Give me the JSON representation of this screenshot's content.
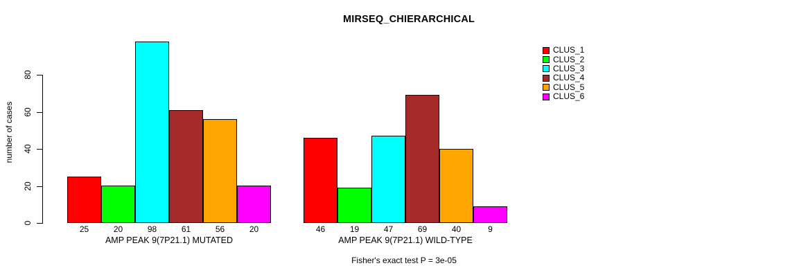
{
  "title": "MIRSEQ_CHIERARCHICAL",
  "y_axis": {
    "label": "number of cases",
    "tick_labels": [
      "0",
      "20",
      "40",
      "60",
      "80"
    ]
  },
  "legend": {
    "items": [
      {
        "label": "CLUS_1",
        "color": "#ff0000"
      },
      {
        "label": "CLUS_2",
        "color": "#00ff00"
      },
      {
        "label": "CLUS_3",
        "color": "#00ffff"
      },
      {
        "label": "CLUS_4",
        "color": "#a52a2a"
      },
      {
        "label": "CLUS_5",
        "color": "#ffa500"
      },
      {
        "label": "CLUS_6",
        "color": "#ff00ff"
      }
    ]
  },
  "footnote": "Fisher's exact test P = 3e-05",
  "chart_data": {
    "type": "bar",
    "title": "MIRSEQ_CHIERARCHICAL",
    "xlabel": "",
    "ylabel": "number of cases",
    "ylim": [
      0,
      100
    ],
    "yticks": [
      0,
      20,
      40,
      60,
      80
    ],
    "grid": false,
    "legend_position": "right",
    "bar_value_labels": true,
    "categories": [
      "AMP PEAK 9(7P21.1) MUTATED",
      "AMP PEAK 9(7P21.1) WILD-TYPE"
    ],
    "series": [
      {
        "name": "CLUS_1",
        "color": "#ff0000",
        "values": [
          25,
          46
        ]
      },
      {
        "name": "CLUS_2",
        "color": "#00ff00",
        "values": [
          20,
          19
        ]
      },
      {
        "name": "CLUS_3",
        "color": "#00ffff",
        "values": [
          98,
          47
        ]
      },
      {
        "name": "CLUS_4",
        "color": "#a52a2a",
        "values": [
          61,
          69
        ]
      },
      {
        "name": "CLUS_5",
        "color": "#ffa500",
        "values": [
          56,
          40
        ]
      },
      {
        "name": "CLUS_6",
        "color": "#ff00ff",
        "values": [
          20,
          9
        ]
      }
    ],
    "footnote": "Fisher's exact test P = 3e-05"
  }
}
